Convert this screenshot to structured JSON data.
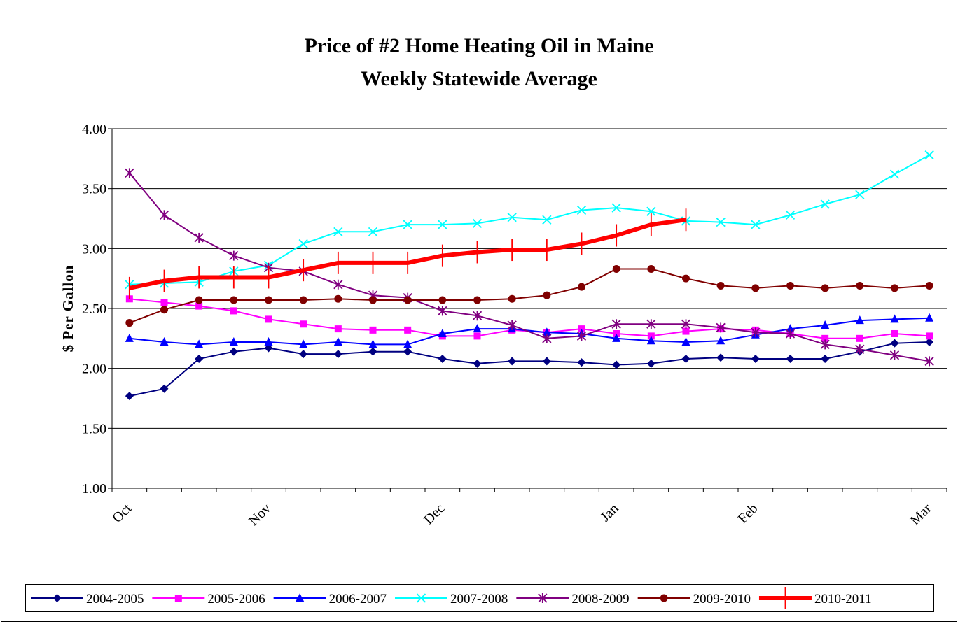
{
  "chart_data": {
    "type": "line",
    "title": "Price of #2 Home Heating Oil in Maine",
    "subtitle": "Weekly Statewide Average",
    "y_label": "$ Per Gallon",
    "categories": [
      "Oct",
      null,
      null,
      null,
      "Nov",
      null,
      null,
      null,
      null,
      "Dec",
      null,
      null,
      null,
      null,
      "Jan",
      null,
      null,
      null,
      "Feb",
      null,
      null,
      null,
      null,
      "Mar"
    ],
    "ylim": [
      1,
      4
    ],
    "yticks": [
      {
        "value": 1,
        "label": "1.00"
      },
      {
        "value": 1.5,
        "label": "1.50"
      },
      {
        "value": 2,
        "label": "2.00"
      },
      {
        "value": 2.5,
        "label": "2.50"
      },
      {
        "value": 3,
        "label": "3.00"
      },
      {
        "value": 3.5,
        "label": "3.50"
      },
      {
        "value": 4,
        "label": "4.00"
      }
    ],
    "grid": true,
    "legend": "bottom",
    "series": [
      {
        "name": "2004-2005",
        "color": "#000080",
        "marker": "diamond",
        "line_width": 2,
        "values": [
          1.77,
          1.83,
          2.08,
          2.14,
          2.17,
          2.12,
          2.12,
          2.14,
          2.14,
          2.08,
          2.04,
          2.06,
          2.06,
          2.05,
          2.03,
          2.04,
          2.08,
          2.09,
          2.08,
          2.08,
          2.08,
          2.14,
          2.21,
          2.22
        ]
      },
      {
        "name": "2005-2006",
        "color": "#ff00ff",
        "marker": "square",
        "line_width": 2,
        "values": [
          2.58,
          2.55,
          2.52,
          2.48,
          2.41,
          2.37,
          2.33,
          2.32,
          2.32,
          2.27,
          2.27,
          2.32,
          2.3,
          2.33,
          2.29,
          2.27,
          2.31,
          2.33,
          2.32,
          2.29,
          2.25,
          2.25,
          2.29,
          2.27
        ]
      },
      {
        "name": "2006-2007",
        "color": "#0000ff",
        "marker": "triangle",
        "line_width": 2,
        "values": [
          2.25,
          2.22,
          2.2,
          2.22,
          2.22,
          2.2,
          2.22,
          2.2,
          2.2,
          2.29,
          2.33,
          2.33,
          2.3,
          2.29,
          2.25,
          2.23,
          2.22,
          2.23,
          2.28,
          2.33,
          2.36,
          2.4,
          2.41,
          2.42
        ]
      },
      {
        "name": "2007-2008",
        "color": "#00ffff",
        "marker": "x",
        "line_width": 2,
        "values": [
          2.7,
          2.71,
          2.72,
          2.81,
          2.86,
          3.04,
          3.14,
          3.14,
          3.2,
          3.2,
          3.21,
          3.26,
          3.24,
          3.32,
          3.34,
          3.31,
          3.23,
          3.22,
          3.2,
          3.28,
          3.37,
          3.45,
          3.62,
          3.78
        ]
      },
      {
        "name": "2008-2009",
        "color": "#800080",
        "marker": "star",
        "line_width": 2,
        "values": [
          3.63,
          3.28,
          3.09,
          2.94,
          2.84,
          2.81,
          2.7,
          2.61,
          2.59,
          2.48,
          2.44,
          2.36,
          2.25,
          2.27,
          2.37,
          2.37,
          2.37,
          2.34,
          2.3,
          2.29,
          2.2,
          2.16,
          2.11,
          2.06
        ]
      },
      {
        "name": "2009-2010",
        "color": "#800000",
        "marker": "circle",
        "line_width": 2,
        "values": [
          2.38,
          2.49,
          2.57,
          2.57,
          2.57,
          2.57,
          2.58,
          2.57,
          2.57,
          2.57,
          2.57,
          2.58,
          2.61,
          2.68,
          2.83,
          2.83,
          2.75,
          2.69,
          2.67,
          2.69,
          2.67,
          2.69,
          2.67,
          2.69
        ]
      },
      {
        "name": "2010-2011",
        "color": "#ff0000",
        "marker": "dash",
        "line_width": 6,
        "values": [
          2.67,
          2.73,
          2.76,
          2.76,
          2.76,
          2.82,
          2.88,
          2.88,
          2.88,
          2.94,
          2.97,
          2.99,
          2.99,
          3.04,
          3.11,
          3.2,
          3.24,
          null,
          null,
          null,
          null,
          null,
          null,
          null
        ]
      }
    ]
  }
}
